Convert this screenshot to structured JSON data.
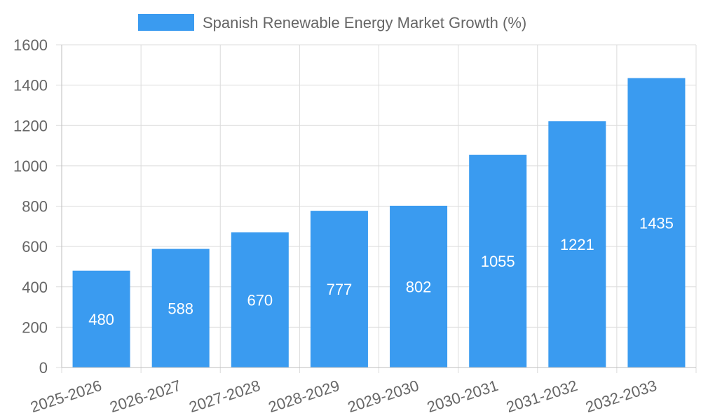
{
  "chart_data": {
    "type": "bar",
    "title": "",
    "legend": {
      "label": "Spanish Renewable Energy Market Growth (%)",
      "placement": "top-center"
    },
    "categories": [
      "2025-2026",
      "2026-2027",
      "2027-2028",
      "2028-2029",
      "2029-2030",
      "2030-2031",
      "2031-2032",
      "2032-2033"
    ],
    "values": [
      480,
      588,
      670,
      777,
      802,
      1055,
      1221,
      1435
    ],
    "ylim": [
      0,
      1600
    ],
    "yticks": [
      0,
      200,
      400,
      600,
      800,
      1000,
      1200,
      1400,
      1600
    ],
    "xlabel": "",
    "ylabel": "",
    "grid": true,
    "colors": {
      "bar": "#3a9bf0",
      "grid": "#dcdcdc",
      "text": "#666666",
      "bar_label": "#ffffff"
    }
  }
}
